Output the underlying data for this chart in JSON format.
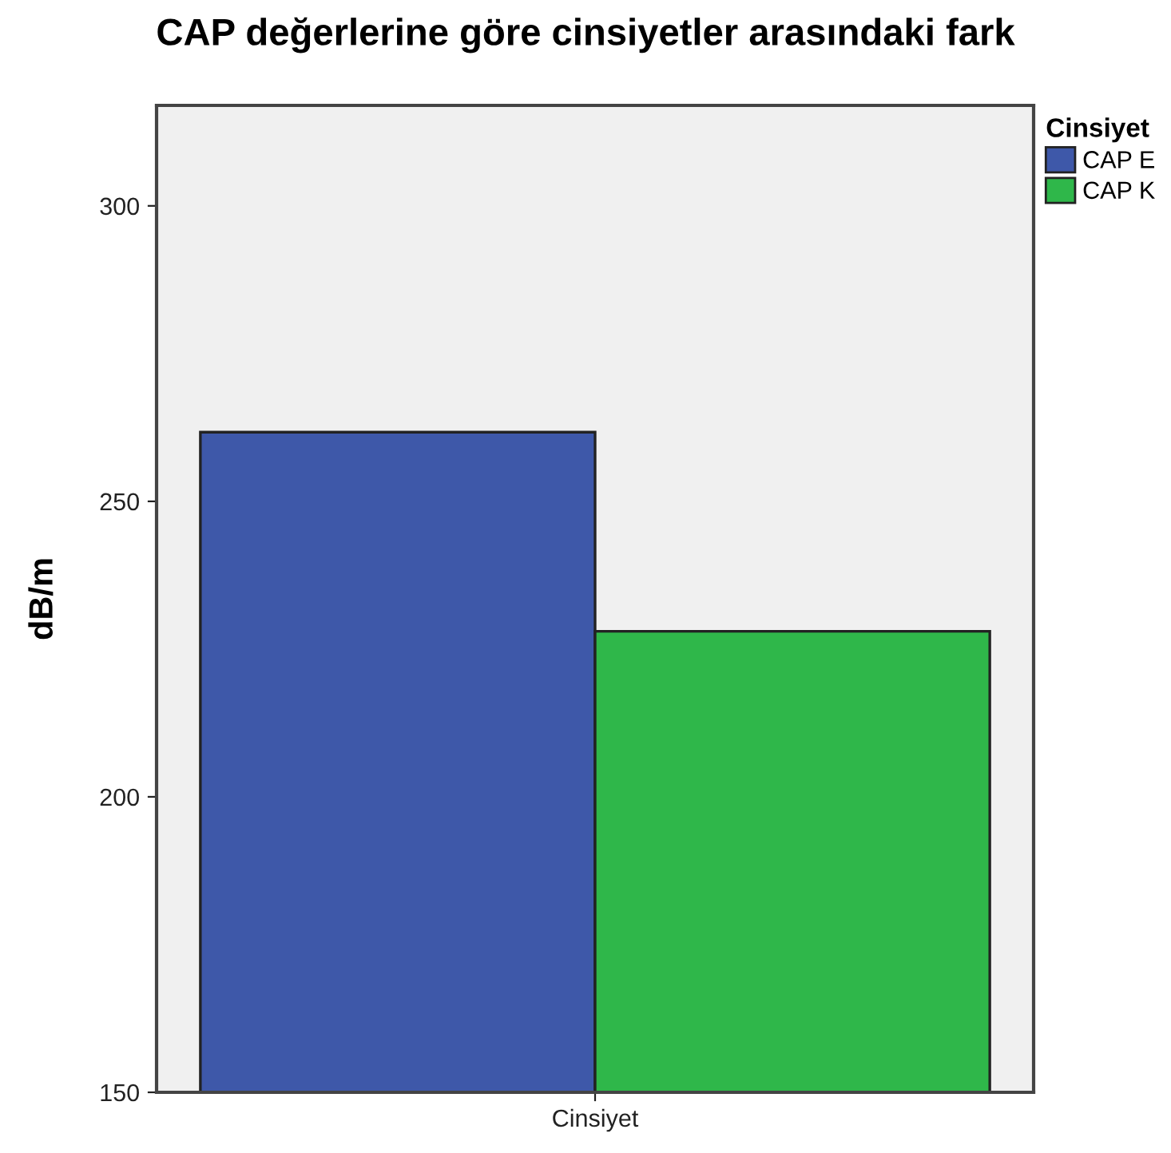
{
  "chart_data": {
    "type": "bar",
    "title": "CAP değerlerine göre cinsiyetler arasındaki fark",
    "ylabel": "dB/m",
    "legend_title": "Cinsiyet",
    "categories": [
      "Cinsiyet"
    ],
    "series": [
      {
        "name": "CAP E",
        "color": "#3e58a9",
        "values": [
          261.7
        ]
      },
      {
        "name": "CAP K",
        "color": "#2fb74a",
        "values": [
          228
        ]
      }
    ],
    "ylim": [
      150,
      317
    ],
    "yticks": [
      150,
      200,
      250,
      300
    ],
    "grid": false,
    "legend": "top right"
  }
}
